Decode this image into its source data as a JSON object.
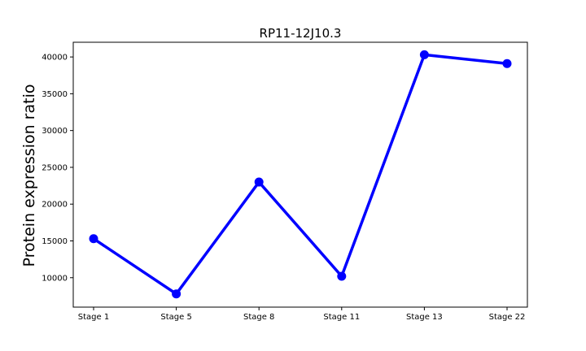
{
  "chart_data": {
    "type": "line",
    "title": "RP11-12J10.3",
    "xlabel": "",
    "ylabel": "Protein expression ratio",
    "categories": [
      "Stage 1",
      "Stage 5",
      "Stage 8",
      "Stage 11",
      "Stage 13",
      "Stage 22"
    ],
    "series": [
      {
        "values": [
          15300,
          7800,
          23000,
          10200,
          40300,
          39100
        ],
        "color": "#0000ff"
      }
    ],
    "ylim": [
      6000,
      42000
    ],
    "yticks": [
      10000,
      15000,
      20000,
      25000,
      30000,
      35000,
      40000
    ],
    "grid": false,
    "legend": "none"
  }
}
